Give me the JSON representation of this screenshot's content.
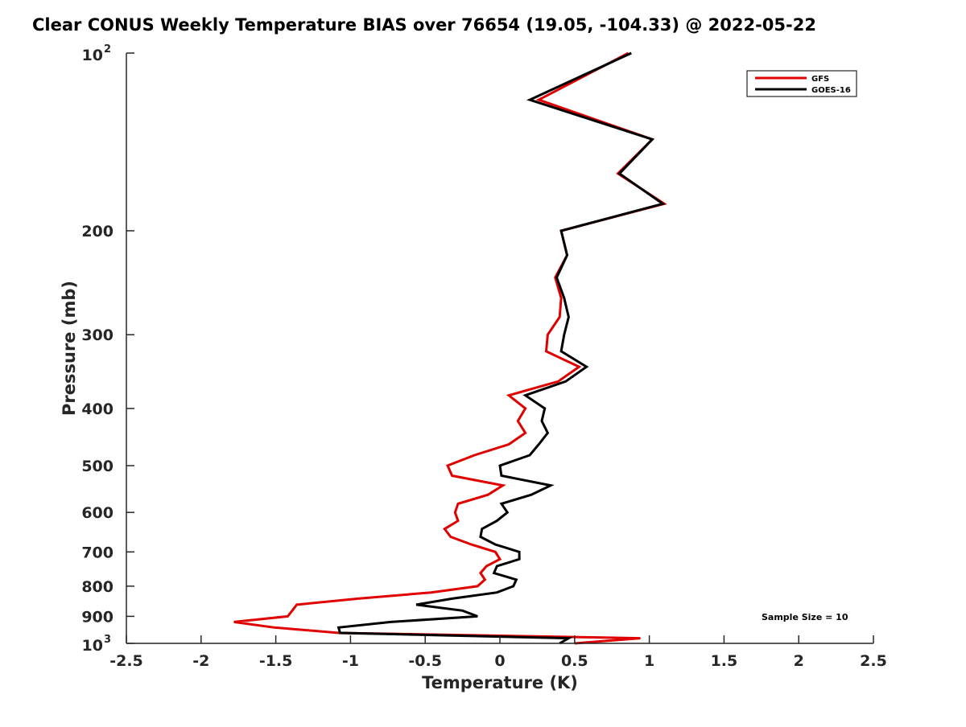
{
  "chart_data": {
    "type": "line",
    "title": "Clear CONUS Weekly Temperature BIAS over 76654 (19.05, -104.33) @ 2022-05-22",
    "xlabel": "Temperature (K)",
    "ylabel": "Pressure (mb)",
    "xlim": [
      -2.5,
      2.5
    ],
    "ylim": [
      100,
      1000
    ],
    "yscale": "log",
    "y_reversed": true,
    "grid": false,
    "legend_position": "top-right",
    "xticks": [
      "-2.5",
      "-2",
      "-1.5",
      "-1",
      "-0.5",
      "0",
      "0.5",
      "1",
      "1.5",
      "2",
      "2.5"
    ],
    "yticks": [
      {
        "value": 100,
        "base": "10",
        "exp": "2"
      },
      {
        "value": 200,
        "label": "200"
      },
      {
        "value": 300,
        "label": "300"
      },
      {
        "value": 400,
        "label": "400"
      },
      {
        "value": 500,
        "label": "500"
      },
      {
        "value": 600,
        "label": "600"
      },
      {
        "value": 700,
        "label": "700"
      },
      {
        "value": 800,
        "label": "800"
      },
      {
        "value": 900,
        "label": "900"
      },
      {
        "value": 1000,
        "base": "10",
        "exp": "3"
      }
    ],
    "annotation": "Sample Size = 10",
    "pressure": [
      100,
      120,
      140,
      160,
      180,
      200,
      220,
      240,
      260,
      280,
      300,
      320,
      340,
      360,
      380,
      400,
      420,
      440,
      460,
      480,
      500,
      520,
      540,
      560,
      580,
      600,
      620,
      640,
      660,
      680,
      700,
      720,
      740,
      760,
      780,
      800,
      820,
      840,
      860,
      880,
      900,
      920,
      940,
      960,
      980,
      1000
    ],
    "series": [
      {
        "name": "GFS",
        "color": "#e00000",
        "values": [
          0.86,
          0.26,
          1.02,
          0.79,
          1.1,
          0.41,
          0.45,
          0.37,
          0.41,
          0.4,
          0.32,
          0.31,
          0.53,
          0.39,
          0.06,
          0.17,
          0.12,
          0.17,
          0.06,
          -0.17,
          -0.35,
          -0.32,
          0.02,
          -0.08,
          -0.28,
          -0.3,
          -0.28,
          -0.37,
          -0.33,
          -0.19,
          -0.03,
          0.0,
          -0.09,
          -0.13,
          -0.1,
          -0.15,
          -0.46,
          -0.95,
          -1.36,
          -1.39,
          -1.42,
          -1.78,
          -1.51,
          -1.08,
          0.94,
          0.5
        ]
      },
      {
        "name": "GOES-16",
        "color": "#000000",
        "values": [
          0.88,
          0.2,
          1.02,
          0.8,
          1.09,
          0.41,
          0.45,
          0.38,
          0.43,
          0.46,
          0.43,
          0.41,
          0.58,
          0.44,
          0.17,
          0.3,
          0.28,
          0.32,
          0.26,
          0.2,
          0.0,
          0.01,
          0.34,
          0.21,
          0.01,
          0.05,
          -0.02,
          -0.12,
          -0.13,
          -0.03,
          0.13,
          0.13,
          -0.02,
          -0.04,
          0.11,
          0.09,
          -0.02,
          -0.32,
          -0.56,
          -0.25,
          -0.15,
          -0.73,
          -1.08,
          -1.07,
          0.46,
          0.4
        ]
      }
    ]
  }
}
